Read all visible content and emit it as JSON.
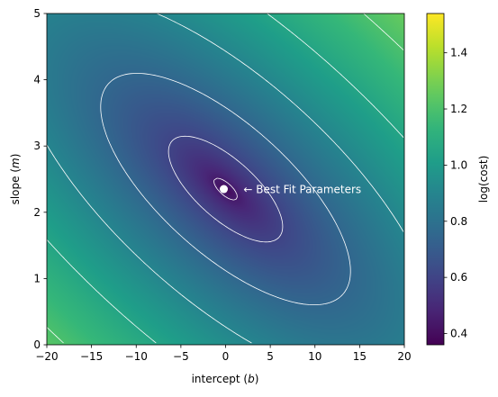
{
  "chart_data": {
    "type": "heatmap",
    "title": "",
    "xlabel": "intercept (b)",
    "ylabel": "slope (m)",
    "xlim": [
      -20,
      20
    ],
    "ylim": [
      0,
      5
    ],
    "x_ticks": [
      "−20",
      "−15",
      "−10",
      "−5",
      "0",
      "5",
      "10",
      "15",
      "20"
    ],
    "y_ticks": [
      "0",
      "1",
      "2",
      "3",
      "4",
      "5"
    ],
    "x_tick_values": [
      -20,
      -15,
      -10,
      -5,
      0,
      5,
      10,
      15,
      20
    ],
    "y_tick_values": [
      0,
      1,
      2,
      3,
      4,
      5
    ],
    "colormap": "viridis",
    "colorbar": {
      "label": "log(cost)",
      "range": [
        0.36,
        1.54
      ],
      "ticks": [
        "0.4",
        "0.6",
        "0.8",
        "1.0",
        "1.2",
        "1.4"
      ],
      "tick_values": [
        0.4,
        0.6,
        0.8,
        1.0,
        1.2,
        1.4
      ]
    },
    "minimum": {
      "b": 0,
      "m": 2.35,
      "value": 0.36
    },
    "contour_lines": {
      "color": "#ffffff",
      "levels": [
        0.45,
        0.6,
        0.75,
        0.9,
        1.05,
        1.2,
        1.35,
        1.5
      ]
    },
    "annotation": {
      "text": "← Best Fit Parameters",
      "x": 2,
      "y": 2.3,
      "marker": {
        "b": -0.2,
        "m": 2.35,
        "color": "#ffffff"
      }
    },
    "grid": false
  }
}
